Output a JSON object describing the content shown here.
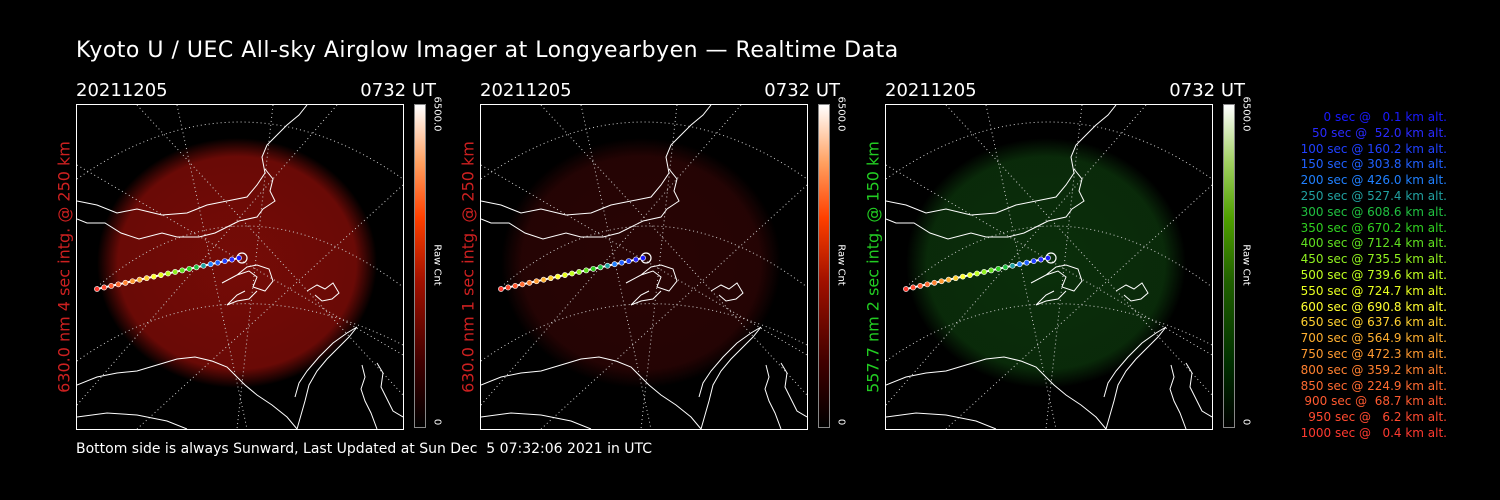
{
  "title": "Kyoto U / UEC All-sky Airglow Imager at Longyearbyen — Realtime Data",
  "panels": [
    {
      "date": "20211205",
      "time": "0732 UT",
      "label": "630.0 nm 4 sec intg. @ 250 km",
      "label_color": "#cc2020",
      "cbar_max": "6500.0",
      "cbar_unit": "Raw Cnt",
      "cbar_min": "0",
      "glow_color": "#8a0d08",
      "glow_opacity": 0.85
    },
    {
      "date": "20211205",
      "time": "0732 UT",
      "label": "630.0 nm 1 sec intg. @ 250 km",
      "label_color": "#cc2020",
      "cbar_max": "6500.0",
      "cbar_unit": "Raw Cnt",
      "cbar_min": "0",
      "glow_color": "#3a0606",
      "glow_opacity": 0.7
    },
    {
      "date": "20211205",
      "time": "0732 UT",
      "label": "557.7 nm 2 sec intg. @ 150 km",
      "label_color": "#22cc22",
      "cbar_max": "6500.0",
      "cbar_unit": "Raw Cnt",
      "cbar_min": "0",
      "glow_color": "#0d3a0d",
      "glow_opacity": 0.8
    }
  ],
  "legend": [
    {
      "text": "0 sec @   0.1 km alt.",
      "color": "#1a1aff"
    },
    {
      "text": "50 sec @  52.0 km alt.",
      "color": "#2a2aff"
    },
    {
      "text": "100 sec @ 160.2 km alt.",
      "color": "#2040ff"
    },
    {
      "text": "150 sec @ 303.8 km alt.",
      "color": "#2060ff"
    },
    {
      "text": "200 sec @ 426.0 km alt.",
      "color": "#2080ff"
    },
    {
      "text": "250 sec @ 527.4 km alt.",
      "color": "#20a0a0"
    },
    {
      "text": "300 sec @ 608.6 km alt.",
      "color": "#20c040"
    },
    {
      "text": "350 sec @ 670.2 km alt.",
      "color": "#30d020"
    },
    {
      "text": "400 sec @ 712.4 km alt.",
      "color": "#60e020"
    },
    {
      "text": "450 sec @ 735.5 km alt.",
      "color": "#90f020"
    },
    {
      "text": "500 sec @ 739.6 km alt.",
      "color": "#c0ff20"
    },
    {
      "text": "550 sec @ 724.7 km alt.",
      "color": "#e8ff20"
    },
    {
      "text": "600 sec @ 690.8 km alt.",
      "color": "#ffff30"
    },
    {
      "text": "650 sec @ 637.6 km alt.",
      "color": "#ffd030"
    },
    {
      "text": "700 sec @ 564.9 km alt.",
      "color": "#ffb030"
    },
    {
      "text": "750 sec @ 472.3 km alt.",
      "color": "#ff9a30"
    },
    {
      "text": "800 sec @ 359.2 km alt.",
      "color": "#ff8030"
    },
    {
      "text": "850 sec @ 224.9 km alt.",
      "color": "#ff6a30"
    },
    {
      "text": "900 sec @  68.7 km alt.",
      "color": "#ff5a30"
    },
    {
      "text": "950 sec @   6.2 km alt.",
      "color": "#ff4a30"
    },
    {
      "text": "1000 sec @   0.4 km alt.",
      "color": "#ff3a30"
    }
  ],
  "footer": "Bottom side is always Sunward, Last Updated at Sun Dec  5 07:32:06 2021 in UTC"
}
